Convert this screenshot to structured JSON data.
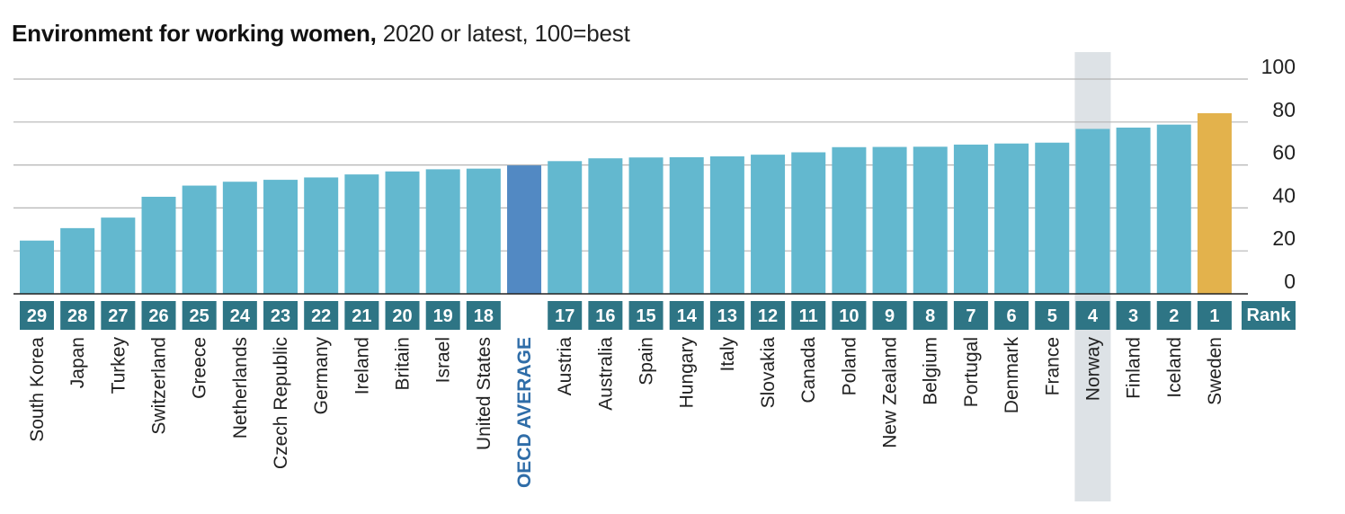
{
  "title": "Environment for working women,",
  "subtitle": " 2020 or latest, 100=best",
  "rank_header": "Rank",
  "colors": {
    "bar": "#63b8cf",
    "average": "#5289c3",
    "top": "#e3b24c",
    "rank_box": "#2e7585",
    "grid": "#b5b5b5",
    "baseline": "#222222",
    "highlight_band": "#dde2e6",
    "highlight_text": "#2f6da8"
  },
  "chart_data": {
    "type": "bar",
    "title": "Environment for working women, 2020 or latest, 100=best",
    "ylim": [
      0,
      100
    ],
    "yticks": [
      0,
      20,
      40,
      60,
      80,
      100
    ],
    "grid": true,
    "y_axis_position": "right",
    "categories": [
      "South Korea",
      "Japan",
      "Turkey",
      "Switzerland",
      "Greece",
      "Netherlands",
      "Czech Republic",
      "Germany",
      "Ireland",
      "Britain",
      "Israel",
      "United States",
      "OECD AVERAGE",
      "Austria",
      "Australia",
      "Spain",
      "Hungary",
      "Italy",
      "Slovakia",
      "Canada",
      "Poland",
      "New Zealand",
      "Belgium",
      "Portugal",
      "Denmark",
      "France",
      "Norway",
      "Finland",
      "Iceland",
      "Sweden"
    ],
    "ranks": [
      "29",
      "28",
      "27",
      "26",
      "25",
      "24",
      "23",
      "22",
      "21",
      "20",
      "19",
      "18",
      "",
      "17",
      "16",
      "15",
      "14",
      "13",
      "12",
      "11",
      "10",
      "9",
      "8",
      "7",
      "6",
      "5",
      "4",
      "3",
      "2",
      "1"
    ],
    "values": [
      24.8,
      30.6,
      35.5,
      45.2,
      50.4,
      52.2,
      53.1,
      54.2,
      55.6,
      57.0,
      58.0,
      58.3,
      59.8,
      61.8,
      63.1,
      63.5,
      63.6,
      64.0,
      64.8,
      65.9,
      68.3,
      68.4,
      68.5,
      69.5,
      70.0,
      70.4,
      76.8,
      77.4,
      78.8,
      84.1
    ],
    "average_category": "OECD AVERAGE",
    "top_category": "Sweden",
    "highlight_category": "Norway"
  }
}
